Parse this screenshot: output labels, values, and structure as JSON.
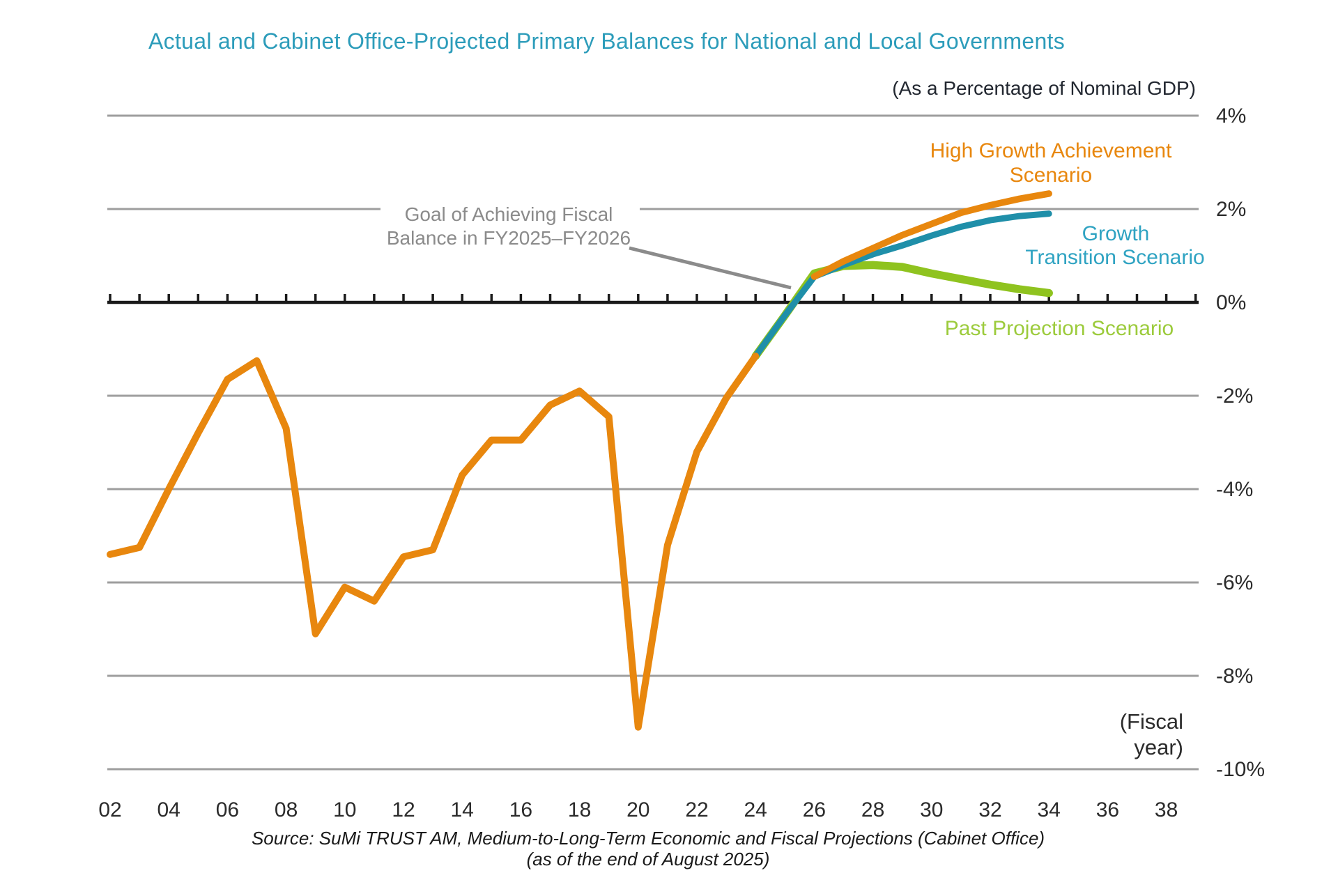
{
  "title": "Actual and Cabinet Office-Projected Primary Balances for National and Local Governments",
  "subtitle": "(As a Percentage of Nominal GDP)",
  "annotation": {
    "line1": "Goal of Achieving Fiscal",
    "line2": "Balance in FY2025–FY2026"
  },
  "x_axis_note": {
    "line1": "(Fiscal",
    "line2": "year)"
  },
  "source": {
    "line1": "Source: SuMi TRUST AM, Medium-to-Long-Term Economic and Fiscal Projections (Cabinet Office)",
    "line2": "(as of the end of August 2025)"
  },
  "colors": {
    "title": "#2C9CBA",
    "axis": "#1a1a1a",
    "gridline": "#9E9E9E",
    "annotation": "#8B8B8B",
    "orange": "#E8870E",
    "teal": "#1F8FA9",
    "green": "#8FC31F"
  },
  "chart_data": {
    "type": "line",
    "title": "Actual and Cabinet Office-Projected Primary Balances for National and Local Governments",
    "y_axis": {
      "unit": "% of nominal GDP",
      "min": -10,
      "max": 4,
      "gridline_values": [
        4,
        2,
        0,
        -2,
        -4,
        -6,
        -8,
        -10
      ],
      "tick_labels": [
        "4%",
        "2%",
        "0%",
        "-2%",
        "-4%",
        "-6%",
        "-8%",
        "-10%"
      ]
    },
    "x_axis": {
      "start_fy": 2002,
      "end_fy": 2038,
      "tick_labels": [
        "02",
        "04",
        "06",
        "08",
        "10",
        "12",
        "14",
        "16",
        "18",
        "20",
        "22",
        "24",
        "26",
        "28",
        "30",
        "32",
        "34",
        "36",
        "38"
      ]
    },
    "series": [
      {
        "id": "past-projection-scenario",
        "label_lines": [
          "Past Projection Scenario"
        ],
        "color": "#8FC31F",
        "label_color": "#9CCB3C",
        "width": 11.5,
        "points": [
          [
            2024,
            -1.15
          ],
          [
            2025,
            -0.28
          ],
          [
            2026,
            0.62
          ],
          [
            2027,
            0.78
          ],
          [
            2028,
            0.8
          ],
          [
            2029,
            0.76
          ],
          [
            2030,
            0.62
          ],
          [
            2031,
            0.5
          ],
          [
            2032,
            0.38
          ],
          [
            2033,
            0.28
          ],
          [
            2034,
            0.2
          ]
        ]
      },
      {
        "id": "growth-transition-scenario",
        "label_lines": [
          "Growth",
          "Transition Scenario"
        ],
        "color": "#1F8FA9",
        "label_color": "#2FA3C2",
        "width": 9,
        "points": [
          [
            2024,
            -1.15
          ],
          [
            2025,
            -0.28
          ],
          [
            2026,
            0.55
          ],
          [
            2027,
            0.8
          ],
          [
            2028,
            1.03
          ],
          [
            2029,
            1.22
          ],
          [
            2030,
            1.43
          ],
          [
            2031,
            1.62
          ],
          [
            2032,
            1.76
          ],
          [
            2033,
            1.85
          ],
          [
            2034,
            1.9
          ]
        ]
      },
      {
        "id": "actual-primary-balance",
        "label_lines": [],
        "color": "#E8870E",
        "label_color": "#E8870E",
        "width": 10,
        "points": [
          [
            2002,
            -5.4
          ],
          [
            2003,
            -5.25
          ],
          [
            2004,
            -4.0
          ],
          [
            2005,
            -2.8
          ],
          [
            2006,
            -1.65
          ],
          [
            2007,
            -1.25
          ],
          [
            2008,
            -2.7
          ],
          [
            2009,
            -7.1
          ],
          [
            2010,
            -6.1
          ],
          [
            2011,
            -6.4
          ],
          [
            2012,
            -5.45
          ],
          [
            2013,
            -5.3
          ],
          [
            2014,
            -3.7
          ],
          [
            2015,
            -2.95
          ],
          [
            2016,
            -2.95
          ],
          [
            2017,
            -2.2
          ],
          [
            2018,
            -1.9
          ],
          [
            2019,
            -2.45
          ],
          [
            2020,
            -9.1
          ],
          [
            2021,
            -5.2
          ],
          [
            2022,
            -3.2
          ],
          [
            2023,
            -2.05
          ],
          [
            2024,
            -1.15
          ]
        ]
      },
      {
        "id": "high-growth-achievement-scenario",
        "label_lines": [
          "High Growth Achievement",
          "Scenario"
        ],
        "color": "#E8870E",
        "label_color": "#E8870E",
        "width": 9.5,
        "points": [
          [
            2026,
            0.55
          ],
          [
            2027,
            0.88
          ],
          [
            2028,
            1.16
          ],
          [
            2029,
            1.44
          ],
          [
            2030,
            1.68
          ],
          [
            2031,
            1.92
          ],
          [
            2032,
            2.08
          ],
          [
            2033,
            2.22
          ],
          [
            2034,
            2.33
          ]
        ]
      }
    ]
  }
}
